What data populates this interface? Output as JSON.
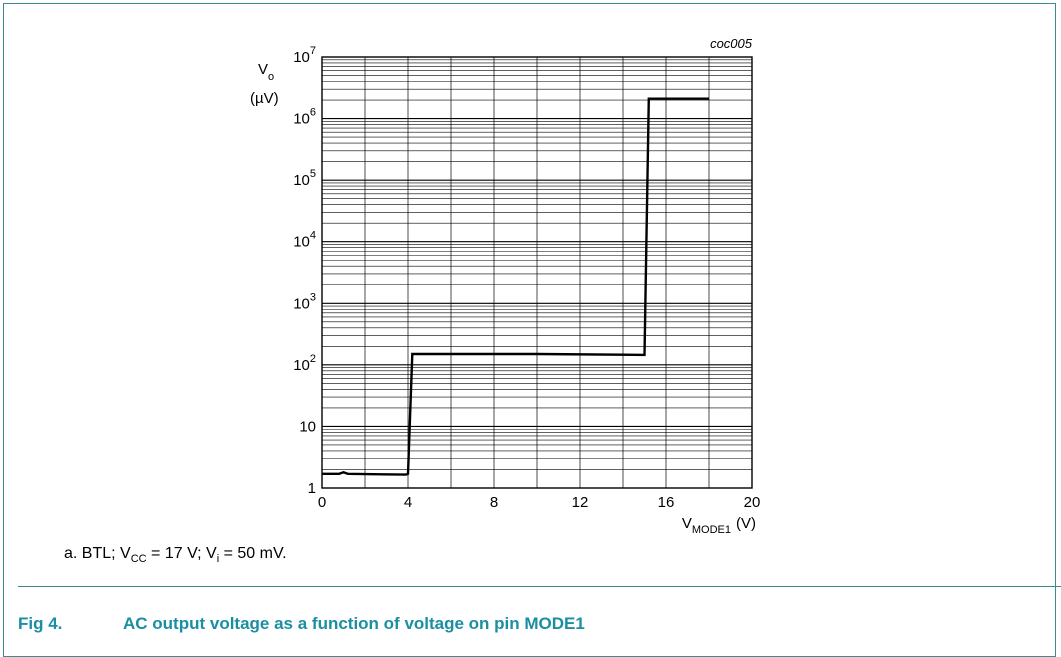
{
  "chart_data": {
    "type": "line",
    "figure_id": "coc005",
    "ylabel_symbol": "V",
    "ylabel_sub": "o",
    "ylabel_unit": "(µV)",
    "xlabel_symbol": "V",
    "xlabel_sub": "MODE1",
    "xlabel_unit": "(V)",
    "xlim": [
      0,
      20
    ],
    "ylim": [
      1,
      10000000
    ],
    "yscale": "log",
    "grid": true,
    "x_ticks": [
      "0",
      "4",
      "8",
      "12",
      "16",
      "20"
    ],
    "y_ticks": [
      {
        "base": "1",
        "exp": ""
      },
      {
        "base": "10",
        "exp": ""
      },
      {
        "base": "10",
        "exp": "2"
      },
      {
        "base": "10",
        "exp": "3"
      },
      {
        "base": "10",
        "exp": "4"
      },
      {
        "base": "10",
        "exp": "5"
      },
      {
        "base": "10",
        "exp": "6"
      },
      {
        "base": "10",
        "exp": "7"
      }
    ],
    "series": [
      {
        "x": [
          0,
          0.8,
          1.0,
          1.2,
          2.0,
          3.9,
          4.0,
          4.2,
          10.0,
          15.0,
          15.2,
          16.0,
          18.0
        ],
        "y": [
          1.7,
          1.7,
          1.8,
          1.7,
          1.68,
          1.65,
          1.7,
          150,
          150,
          145,
          2100000,
          2100000,
          2100000
        ]
      }
    ]
  },
  "note": {
    "prefix": "a.   BTL; V",
    "sub1": "CC",
    "mid": " = 17 V; V",
    "sub2": "i",
    "suffix": " = 50 mV."
  },
  "figure_caption": {
    "number": "Fig 4.",
    "title": "AC output voltage as a function of voltage on pin MODE1"
  },
  "colors": {
    "border": "#3d8a8f",
    "caption": "#1a8fa1"
  }
}
